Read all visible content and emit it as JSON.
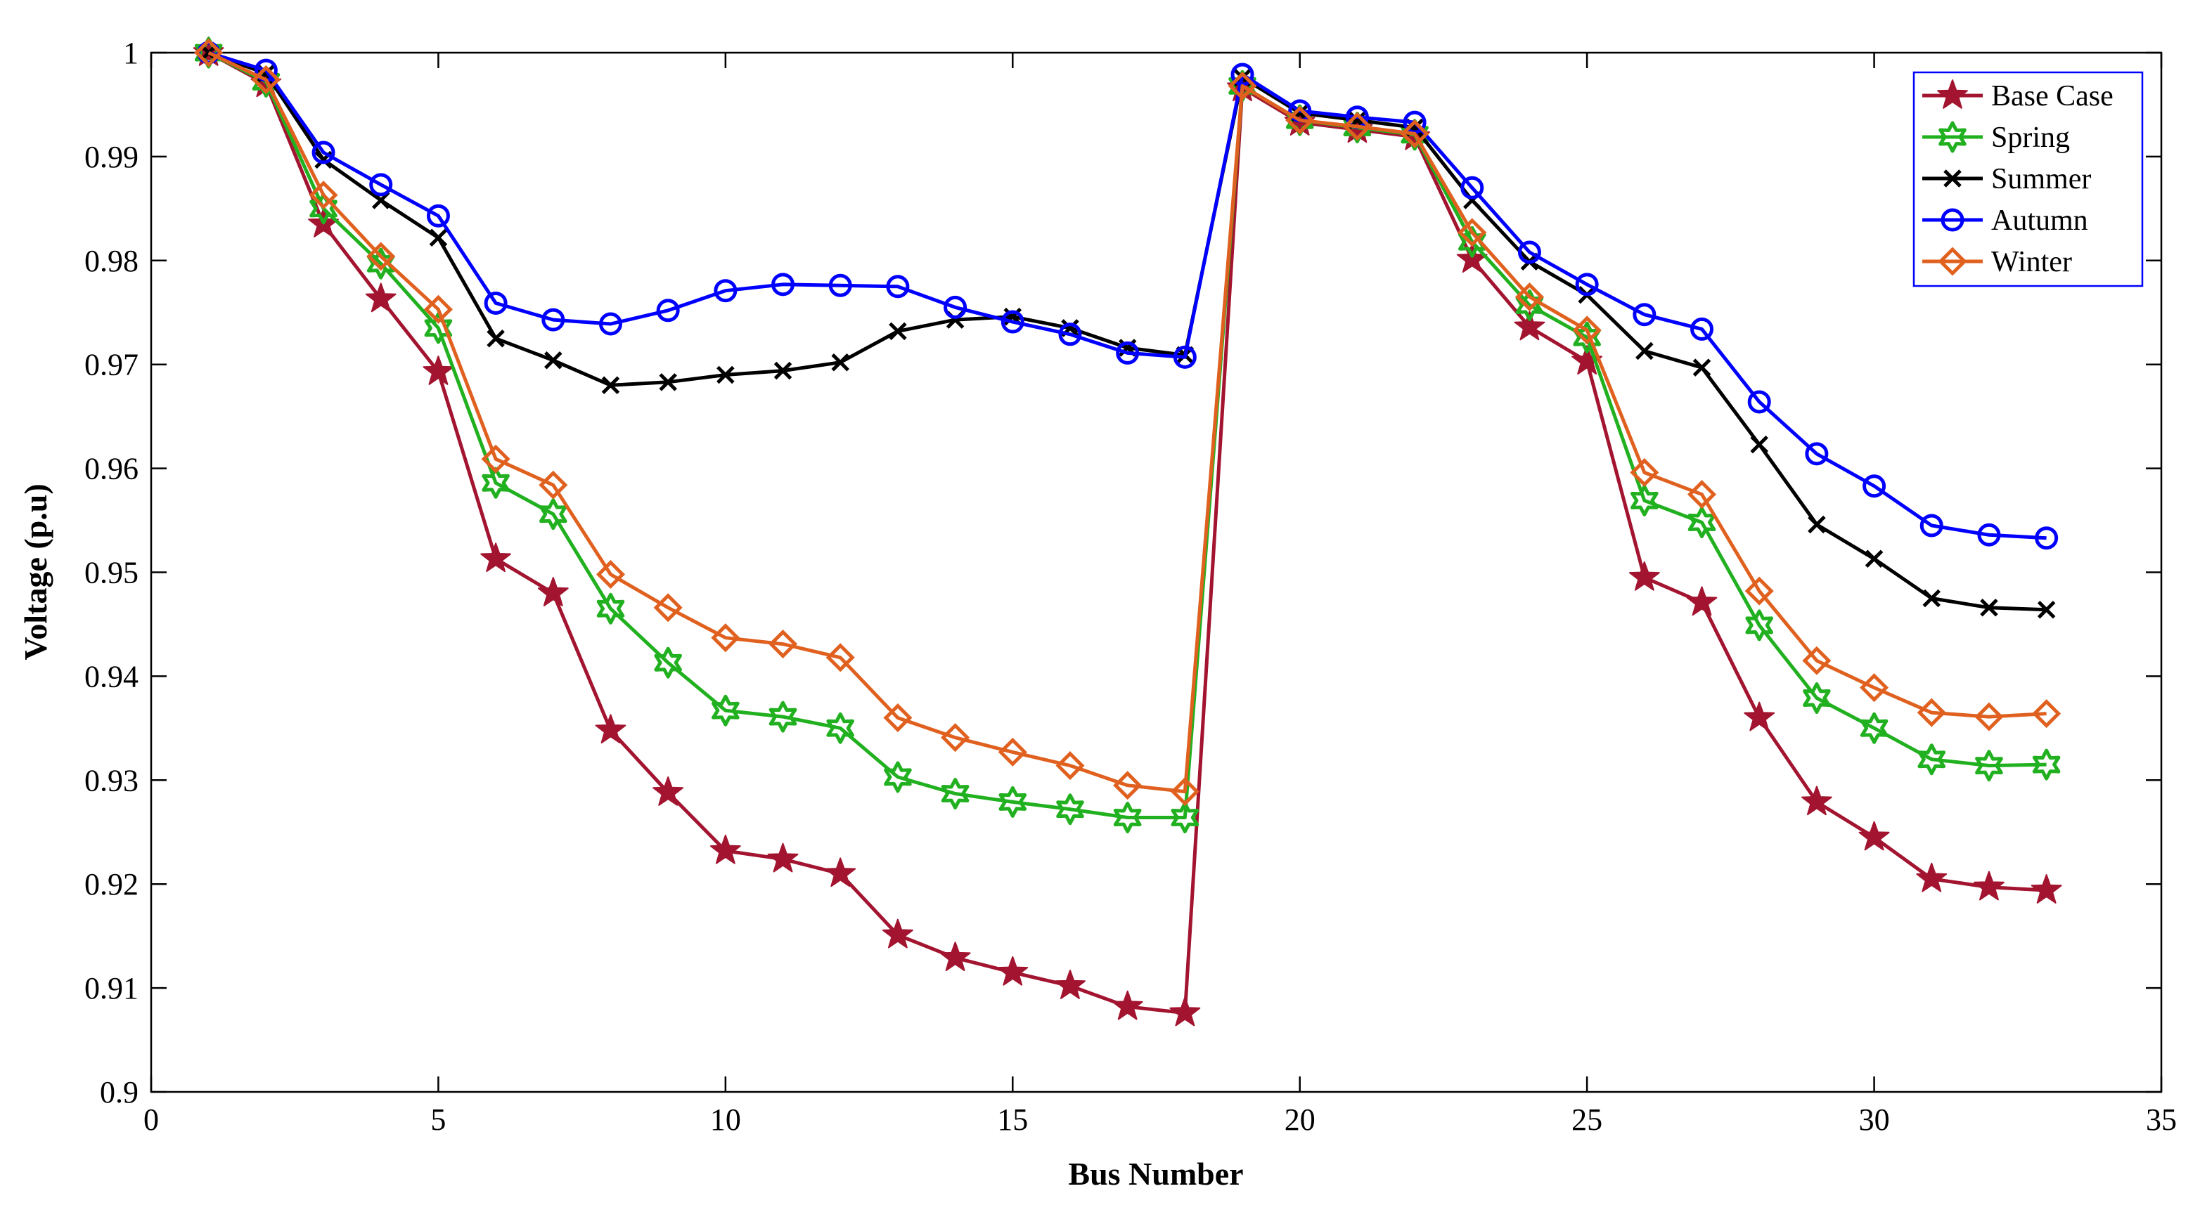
{
  "chart_data": {
    "type": "line",
    "xlabel": "Bus Number",
    "ylabel": "Voltage (p.u)",
    "xlim": [
      0,
      35
    ],
    "ylim": [
      0.9,
      1.0
    ],
    "xticks": [
      "0",
      "5",
      "10",
      "15",
      "20",
      "25",
      "30",
      "35"
    ],
    "yticks": [
      "0.9",
      "0.91",
      "0.92",
      "0.93",
      "0.94",
      "0.95",
      "0.96",
      "0.97",
      "0.98",
      "0.99",
      "1"
    ],
    "grid": false,
    "legend_position": "top-right",
    "x": [
      1,
      2,
      3,
      4,
      5,
      6,
      7,
      8,
      9,
      10,
      11,
      12,
      13,
      14,
      15,
      16,
      17,
      18,
      19,
      20,
      21,
      22,
      23,
      24,
      25,
      26,
      27,
      28,
      29,
      30,
      31,
      32,
      33
    ],
    "series": [
      {
        "name": "Base Case",
        "color": "#A2142F",
        "marker": "star",
        "values": [
          1.0,
          0.997,
          0.9835,
          0.9763,
          0.9693,
          0.9513,
          0.948,
          0.9348,
          0.9288,
          0.9232,
          0.9224,
          0.921,
          0.9151,
          0.9129,
          0.9115,
          0.9102,
          0.9082,
          0.9076,
          0.9966,
          0.9933,
          0.9926,
          0.9919,
          0.9801,
          0.9736,
          0.9703,
          0.9495,
          0.9471,
          0.936,
          0.9279,
          0.9245,
          0.9205,
          0.9197,
          0.9194
        ]
      },
      {
        "name": "Spring",
        "color": "#21B01F",
        "marker": "hexagram",
        "values": [
          1.0,
          0.9972,
          0.985,
          0.9797,
          0.9735,
          0.9586,
          0.9556,
          0.9465,
          0.9413,
          0.9367,
          0.9361,
          0.935,
          0.9303,
          0.9287,
          0.9279,
          0.9272,
          0.9264,
          0.9264,
          0.9968,
          0.9935,
          0.9928,
          0.9921,
          0.9818,
          0.9757,
          0.9726,
          0.9569,
          0.9548,
          0.9449,
          0.9379,
          0.935,
          0.932,
          0.9314,
          0.9315
        ]
      },
      {
        "name": "Summer",
        "color": "#000000",
        "marker": "x",
        "values": [
          1.0,
          0.998,
          0.9897,
          0.9858,
          0.9822,
          0.9725,
          0.9704,
          0.968,
          0.9683,
          0.969,
          0.9694,
          0.9702,
          0.9732,
          0.9743,
          0.9746,
          0.9735,
          0.9716,
          0.9709,
          0.9976,
          0.9942,
          0.9935,
          0.9928,
          0.9858,
          0.9799,
          0.9767,
          0.9713,
          0.9697,
          0.9623,
          0.9546,
          0.9513,
          0.9475,
          0.9466,
          0.9464
        ]
      },
      {
        "name": "Autumn",
        "color": "#0000FF",
        "marker": "circle",
        "values": [
          1.0,
          0.9983,
          0.9904,
          0.9873,
          0.9843,
          0.9759,
          0.9743,
          0.9739,
          0.9752,
          0.9771,
          0.9777,
          0.9776,
          0.9775,
          0.9755,
          0.9741,
          0.9729,
          0.9711,
          0.9707,
          0.9979,
          0.9944,
          0.9938,
          0.9933,
          0.987,
          0.9808,
          0.9777,
          0.9748,
          0.9734,
          0.9664,
          0.9614,
          0.9583,
          0.9545,
          0.9536,
          0.9533
        ]
      },
      {
        "name": "Winter",
        "color": "#E0611F",
        "marker": "diamond",
        "values": [
          1.0,
          0.9974,
          0.9863,
          0.9804,
          0.9753,
          0.9609,
          0.9584,
          0.9498,
          0.9466,
          0.9437,
          0.9431,
          0.9418,
          0.936,
          0.9341,
          0.9327,
          0.9314,
          0.9295,
          0.9289,
          0.9968,
          0.9935,
          0.9929,
          0.9922,
          0.9827,
          0.9765,
          0.9733,
          0.9596,
          0.9575,
          0.9482,
          0.9415,
          0.9389,
          0.9365,
          0.9361,
          0.9364
        ]
      }
    ]
  }
}
